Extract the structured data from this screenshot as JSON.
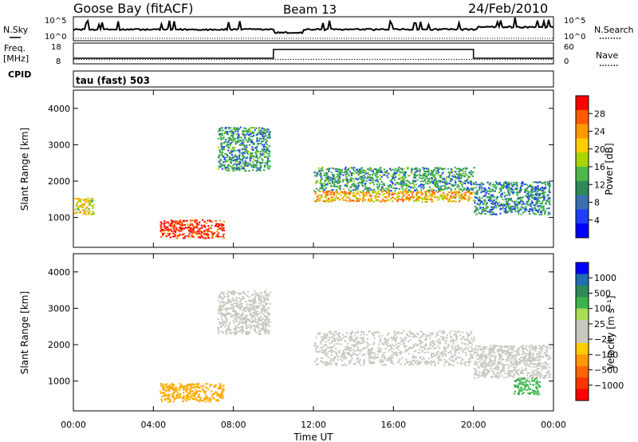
{
  "header": {
    "station": "Goose Bay (fitACF)",
    "beam": "Beam 13",
    "date": "24/Feb/2010"
  },
  "top_panels": {
    "nsky_label": "N.Sky",
    "nsky_ticks": [
      "10^5",
      "10^0"
    ],
    "nsearch_label": "N.Search",
    "nsearch_ticks": [
      "10^5",
      "10^0"
    ],
    "freq_label_1": "Freq.",
    "freq_label_2": "[MHz]",
    "freq_ticks": [
      "18",
      "8"
    ],
    "nave_label": "Nave",
    "nave_ticks": [
      "60",
      "0"
    ],
    "cpid_label": "CPID",
    "cpid_value": "tau (fast) 503"
  },
  "chart_data": [
    {
      "type": "heatmap",
      "quantity": "Power",
      "ylabel": "Slant Range [km]",
      "xlabel": "Time UT",
      "x_range_hours": [
        0,
        24
      ],
      "ylim": [
        180,
        4500
      ],
      "yticks": [
        "1000",
        "2000",
        "3000",
        "4000"
      ],
      "colorbar": {
        "label": "Power [dB]",
        "ticks": [
          "28",
          "24",
          "20",
          "16",
          "12",
          "8",
          "4"
        ],
        "colors": [
          "#ff0000",
          "#ff5a00",
          "#ff9900",
          "#ffcc00",
          "#aad400",
          "#4cb84c",
          "#2e8b57",
          "#3a6fb0",
          "#1f3fff",
          "#0000ff"
        ]
      },
      "echo_regions": [
        {
          "t0": 4.3,
          "t1": 7.5,
          "r0": 450,
          "r1": 950,
          "value": 26
        },
        {
          "t0": 12.0,
          "t1": 20.0,
          "r0": 1450,
          "r1": 1750,
          "value": 20
        },
        {
          "t0": 12.0,
          "t1": 20.0,
          "r0": 1750,
          "r1": 2400,
          "value": 10
        },
        {
          "t0": 7.2,
          "t1": 9.8,
          "r0": 2300,
          "r1": 3500,
          "value": 10
        },
        {
          "t0": 0.0,
          "t1": 1.0,
          "r0": 1100,
          "r1": 1550,
          "value": 18
        },
        {
          "t0": 20.0,
          "t1": 23.8,
          "r0": 1100,
          "r1": 2000,
          "value": 9
        }
      ]
    },
    {
      "type": "heatmap",
      "quantity": "Velocity",
      "ylabel": "Slant Range [km]",
      "xlabel": "Time UT",
      "x_range_hours": [
        0,
        24
      ],
      "ylim": [
        180,
        4500
      ],
      "yticks": [
        "1000",
        "2000",
        "3000",
        "4000"
      ],
      "colorbar": {
        "label": "Velocity [m s⁻¹]",
        "ticks": [
          "1000",
          "500",
          "100",
          "25",
          "−25",
          "−100",
          "−500",
          "−1000"
        ],
        "colors": [
          "#0000ff",
          "#1f6fb0",
          "#2e8b57",
          "#3cb44b",
          "#aadd55",
          "#c8c8c0",
          "#c8c8c0",
          "#ffcc00",
          "#ff9900",
          "#ff6600",
          "#ff3300",
          "#ff0000"
        ]
      },
      "echo_regions": [
        {
          "t0": 12.0,
          "t1": 20.0,
          "r0": 1450,
          "r1": 2400,
          "value": 0
        },
        {
          "t0": 4.3,
          "t1": 7.5,
          "r0": 450,
          "r1": 950,
          "value": -150
        },
        {
          "t0": 7.2,
          "t1": 9.8,
          "r0": 2300,
          "r1": 3500,
          "value": 0
        },
        {
          "t0": 20.0,
          "t1": 23.8,
          "r0": 1100,
          "r1": 2000,
          "value": 0
        },
        {
          "t0": 22.0,
          "t1": 23.3,
          "r0": 650,
          "r1": 1100,
          "value": 150
        }
      ]
    }
  ],
  "x_axis": {
    "ticks": [
      "00:00",
      "04:00",
      "08:00",
      "12:00",
      "16:00",
      "20:00",
      "00:00"
    ],
    "label": "Time UT"
  }
}
